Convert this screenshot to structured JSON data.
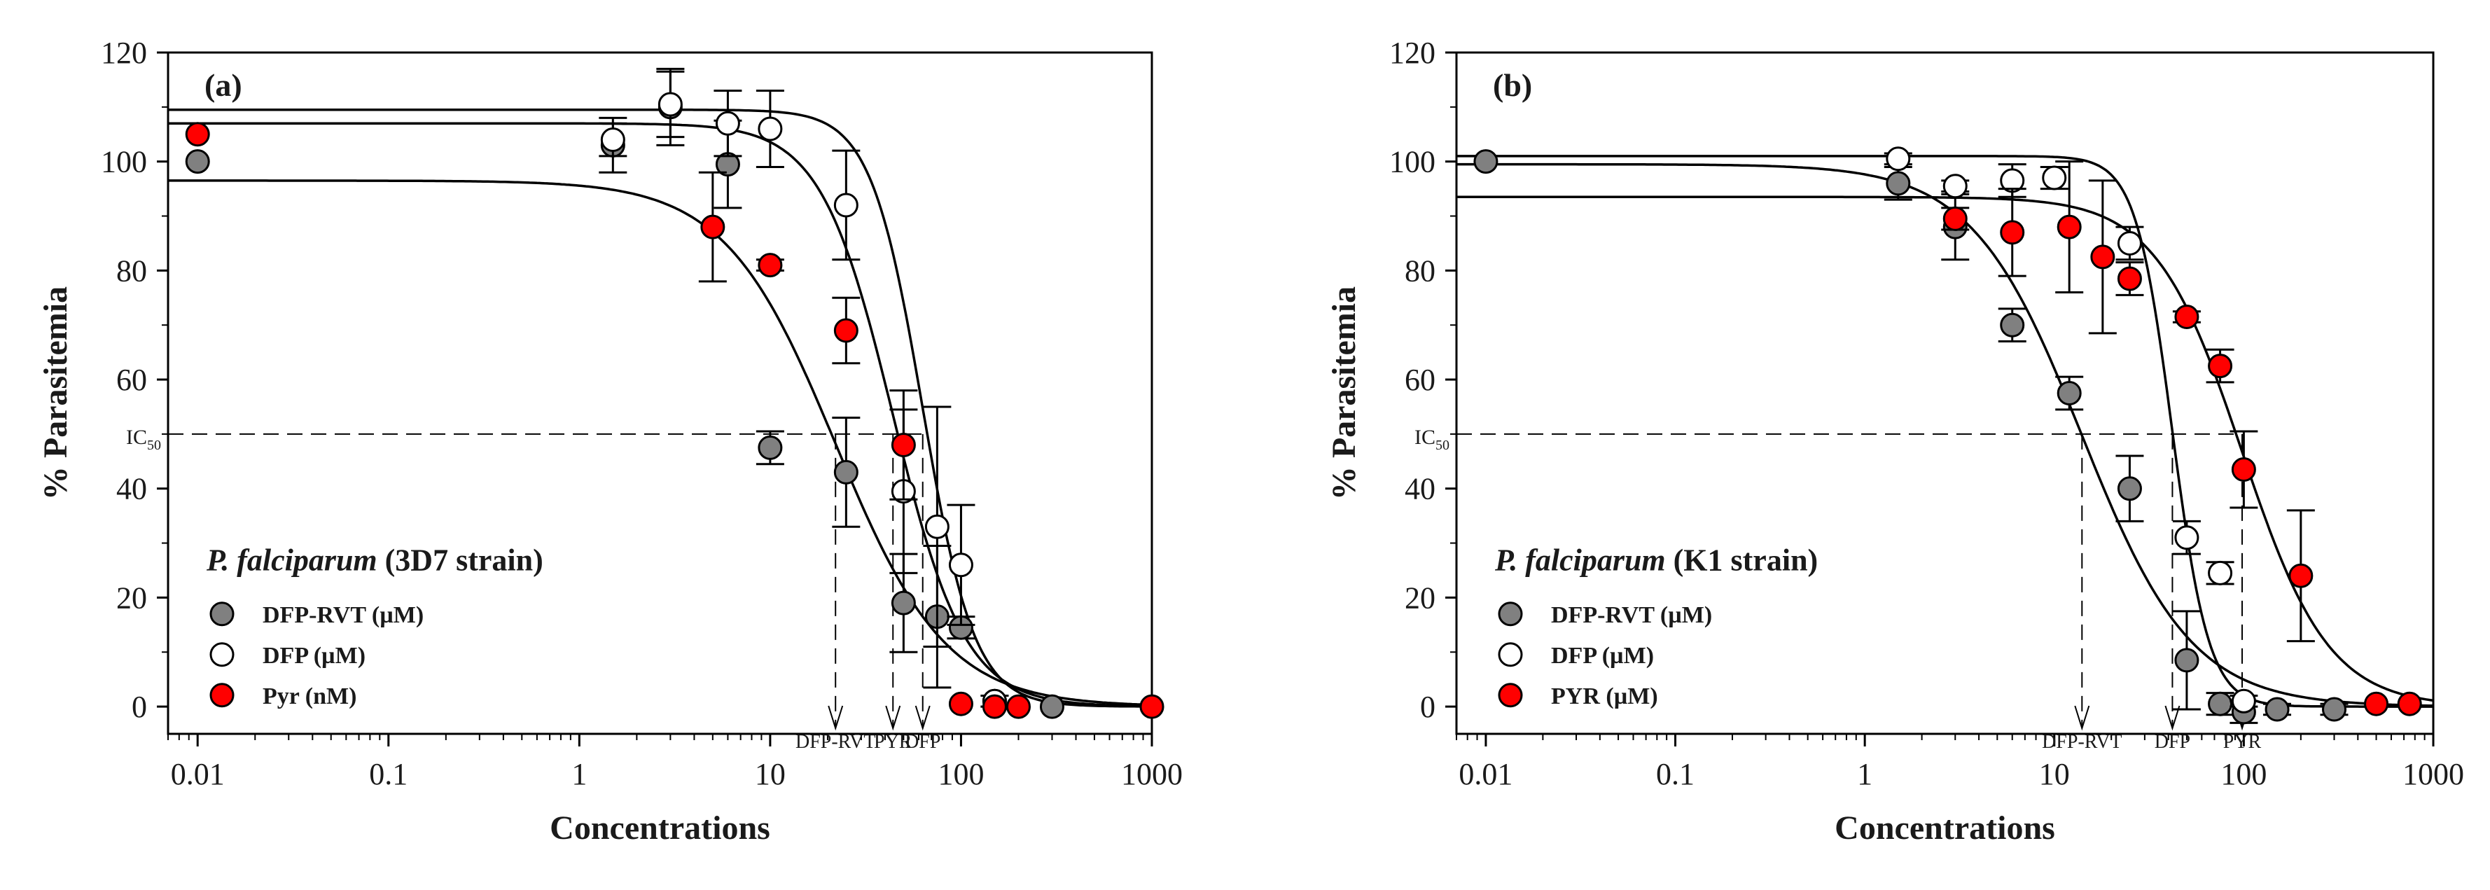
{
  "chart_data": [
    {
      "type": "scatter",
      "panel_tag": "(a)",
      "xlabel": "Concentrations",
      "ylabel": "% Parasitemia",
      "x_scale": "log",
      "xlim": [
        0.007,
        1000
      ],
      "ylim": [
        -5,
        120
      ],
      "x_ticks": [
        "0.01",
        "0.1",
        "1",
        "10",
        "100",
        "1000"
      ],
      "y_ticks": [
        "0",
        "20",
        "40",
        "60",
        "80",
        "100",
        "120"
      ],
      "ic50_label": "IC",
      "ic50_sub": "50",
      "legend_title_italic": "P. falciparum",
      "legend_title_rest": " (3D7 strain)",
      "series": [
        {
          "name": "DFP-RVT (µM)",
          "marker": "filled",
          "color": "#808080",
          "points": [
            {
              "x": 0.01,
              "y": 100,
              "err": 0
            },
            {
              "x": 1.5,
              "y": 103,
              "err": 5
            },
            {
              "x": 3,
              "y": 110,
              "err": 7
            },
            {
              "x": 6,
              "y": 99.5,
              "err": 8
            },
            {
              "x": 10,
              "y": 47.5,
              "err": 3
            },
            {
              "x": 25,
              "y": 43,
              "err": 10
            },
            {
              "x": 50,
              "y": 19,
              "err": 9
            },
            {
              "x": 75,
              "y": 16.5,
              "err": 13
            },
            {
              "x": 100,
              "y": 14.5,
              "err": 2
            },
            {
              "x": 150,
              "y": 1,
              "err": 1
            },
            {
              "x": 300,
              "y": 0,
              "err": 0
            }
          ],
          "fit": {
            "top": 96.5,
            "ic50": 22,
            "hill": 1.5
          }
        },
        {
          "name": "DFP (µM)",
          "marker": "open",
          "color": "#ffffff",
          "points": [
            {
              "x": 1.5,
              "y": 104,
              "err": 3
            },
            {
              "x": 3,
              "y": 110.5,
              "err": 6
            },
            {
              "x": 6,
              "y": 107,
              "err": 6
            },
            {
              "x": 10,
              "y": 106,
              "err": 7
            },
            {
              "x": 25,
              "y": 92,
              "err": 10
            },
            {
              "x": 50,
              "y": 39.5,
              "err": 15
            },
            {
              "x": 75,
              "y": 33,
              "err": 22
            },
            {
              "x": 100,
              "y": 26,
              "err": 11
            },
            {
              "x": 150,
              "y": 1,
              "err": 1
            }
          ],
          "fit": {
            "top": 109.5,
            "ic50": 63,
            "hill": 3.2
          }
        },
        {
          "name": "Pyr (nM)",
          "marker": "filled",
          "color": "#ff0000",
          "points": [
            {
              "x": 0.01,
              "y": 105,
              "err": 0
            },
            {
              "x": 5,
              "y": 88,
              "err": 10
            },
            {
              "x": 10,
              "y": 81,
              "err": 1
            },
            {
              "x": 25,
              "y": 69,
              "err": 6
            },
            {
              "x": 50,
              "y": 48,
              "err": 10
            },
            {
              "x": 100,
              "y": 0.5,
              "err": 0
            },
            {
              "x": 150,
              "y": 0,
              "err": 0
            },
            {
              "x": 200,
              "y": 0,
              "err": 0
            },
            {
              "x": 1000,
              "y": 0,
              "err": 0
            }
          ],
          "fit": {
            "top": 107,
            "ic50": 44,
            "hill": 2.3
          }
        }
      ],
      "ic50_markers": [
        {
          "label": "DFP-RVT",
          "x": 22
        },
        {
          "label": "PYR",
          "x": 44
        },
        {
          "label": "DFP",
          "x": 63
        }
      ]
    },
    {
      "type": "scatter",
      "panel_tag": "(b)",
      "xlabel": "Concentrations",
      "ylabel": "% Parasitemia",
      "x_scale": "log",
      "xlim": [
        0.007,
        1000
      ],
      "ylim": [
        -5,
        120
      ],
      "x_ticks": [
        "0.01",
        "0.1",
        "1",
        "10",
        "100",
        "1000"
      ],
      "y_ticks": [
        "0",
        "20",
        "40",
        "60",
        "80",
        "100",
        "120"
      ],
      "ic50_label": "IC",
      "ic50_sub": "50",
      "legend_title_italic": "P. falciparum",
      "legend_title_rest": " (K1 strain)",
      "series": [
        {
          "name": "DFP-RVT (µM)",
          "marker": "filled",
          "color": "#808080",
          "points": [
            {
              "x": 0.01,
              "y": 100,
              "err": 0
            },
            {
              "x": 1.5,
              "y": 96,
              "err": 3
            },
            {
              "x": 3,
              "y": 88,
              "err": 6
            },
            {
              "x": 6,
              "y": 70,
              "err": 3
            },
            {
              "x": 12,
              "y": 57.5,
              "err": 3
            },
            {
              "x": 25,
              "y": 40,
              "err": 6
            },
            {
              "x": 50,
              "y": 8.5,
              "err": 9
            },
            {
              "x": 75,
              "y": 0.5,
              "err": 2
            },
            {
              "x": 100,
              "y": -1,
              "err": 2
            },
            {
              "x": 150,
              "y": -0.5,
              "err": 1
            },
            {
              "x": 300,
              "y": -0.5,
              "err": 1
            }
          ],
          "fit": {
            "top": 99.5,
            "ic50": 14,
            "hill": 1.5
          }
        },
        {
          "name": "DFP (µM)",
          "marker": "open",
          "color": "#ffffff",
          "points": [
            {
              "x": 1.5,
              "y": 100.5,
              "err": 1
            },
            {
              "x": 3,
              "y": 95.5,
              "err": 1
            },
            {
              "x": 6,
              "y": 96.5,
              "err": 3
            },
            {
              "x": 10,
              "y": 97,
              "err": 2
            },
            {
              "x": 25,
              "y": 85,
              "err": 3
            },
            {
              "x": 50,
              "y": 31,
              "err": 3
            },
            {
              "x": 75,
              "y": 24.5,
              "err": 2
            },
            {
              "x": 100,
              "y": 1,
              "err": 1
            }
          ],
          "fit": {
            "top": 101,
            "ic50": 42,
            "hill": 4.5
          }
        },
        {
          "name": "PYR (µM)",
          "marker": "filled",
          "color": "#ff0000",
          "points": [
            {
              "x": 3,
              "y": 89.5,
              "err": 2
            },
            {
              "x": 6,
              "y": 87,
              "err": 8
            },
            {
              "x": 12,
              "y": 88,
              "err": 12
            },
            {
              "x": 18,
              "y": 82.5,
              "err": 14
            },
            {
              "x": 25,
              "y": 78.5,
              "err": 3
            },
            {
              "x": 50,
              "y": 71.5,
              "err": 1
            },
            {
              "x": 75,
              "y": 62.5,
              "err": 3
            },
            {
              "x": 100,
              "y": 43.5,
              "err": 7
            },
            {
              "x": 200,
              "y": 24,
              "err": 12
            },
            {
              "x": 500,
              "y": 0.5,
              "err": 0
            },
            {
              "x": 750,
              "y": 0.5,
              "err": 0
            }
          ],
          "fit": {
            "top": 93.5,
            "ic50": 98,
            "hill": 1.9
          }
        }
      ],
      "ic50_markers": [
        {
          "label": "DFP-RVT",
          "x": 14
        },
        {
          "label": "DFP",
          "x": 42
        },
        {
          "label": "PYR",
          "x": 98
        }
      ]
    }
  ]
}
